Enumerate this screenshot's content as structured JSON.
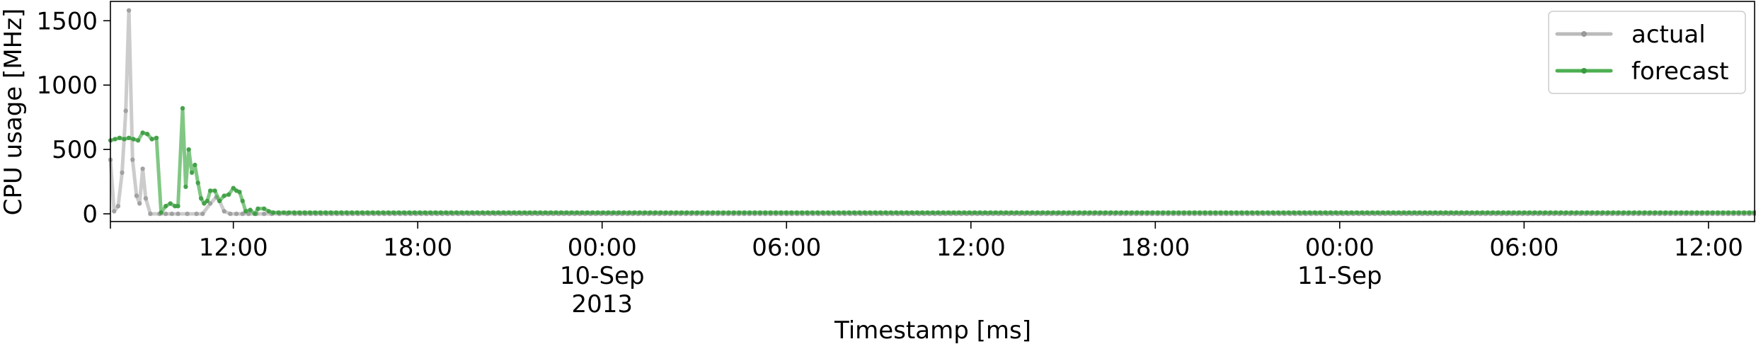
{
  "chart_data": {
    "type": "line",
    "title": "",
    "xlabel": "Timestamp [ms]",
    "ylabel": "CPU usage [MHz]",
    "x_unit": "hours since 2013-09-09 00:00",
    "xlim": [
      8.0,
      61.5
    ],
    "ylim": [
      -60,
      1650
    ],
    "y_ticks": [
      0,
      500,
      1000,
      1500
    ],
    "y_tick_labels": [
      "0",
      "500",
      "1000",
      "1500"
    ],
    "x_ticks": [
      12,
      18,
      24,
      30,
      36,
      42,
      48,
      54,
      60
    ],
    "x_tick_labels": [
      [
        "12:00"
      ],
      [
        "18:00"
      ],
      [
        "00:00",
        "10-Sep",
        "2013"
      ],
      [
        "06:00"
      ],
      [
        "12:00"
      ],
      [
        "18:00"
      ],
      [
        "00:00",
        "11-Sep"
      ],
      [
        "06:00"
      ],
      [
        "12:00"
      ]
    ],
    "grid": false,
    "legend_position": "top-right",
    "series": [
      {
        "name": "actual",
        "color": "#bbbbbb",
        "points": [
          [
            8.0,
            420
          ],
          [
            8.12,
            20
          ],
          [
            8.25,
            60
          ],
          [
            8.38,
            320
          ],
          [
            8.5,
            800
          ],
          [
            8.6,
            1580
          ],
          [
            8.72,
            420
          ],
          [
            8.85,
            140
          ],
          [
            8.95,
            80
          ],
          [
            9.05,
            350
          ],
          [
            9.15,
            120
          ],
          [
            9.3,
            0
          ],
          [
            9.6,
            0
          ],
          [
            10.0,
            0
          ],
          [
            10.2,
            0
          ],
          [
            10.5,
            0
          ],
          [
            10.8,
            0
          ],
          [
            11.0,
            0
          ],
          [
            11.25,
            80
          ],
          [
            11.45,
            130
          ],
          [
            11.55,
            100
          ],
          [
            11.7,
            20
          ],
          [
            11.9,
            0
          ],
          [
            12.5,
            0
          ],
          [
            13.0,
            0
          ],
          [
            13.5,
            0
          ],
          [
            14.0,
            0
          ],
          [
            20.0,
            0
          ],
          [
            30.0,
            0
          ],
          [
            40.0,
            0
          ],
          [
            50.0,
            0
          ],
          [
            61.5,
            0
          ]
        ]
      },
      {
        "name": "forecast",
        "color": "#4caf50",
        "points": [
          [
            8.0,
            570
          ],
          [
            8.15,
            580
          ],
          [
            8.3,
            590
          ],
          [
            8.45,
            580
          ],
          [
            8.6,
            590
          ],
          [
            8.75,
            580
          ],
          [
            8.9,
            570
          ],
          [
            9.05,
            630
          ],
          [
            9.2,
            620
          ],
          [
            9.35,
            580
          ],
          [
            9.5,
            590
          ],
          [
            9.65,
            10
          ],
          [
            9.8,
            60
          ],
          [
            9.95,
            80
          ],
          [
            10.1,
            60
          ],
          [
            10.2,
            60
          ],
          [
            10.35,
            820
          ],
          [
            10.45,
            210
          ],
          [
            10.55,
            500
          ],
          [
            10.65,
            320
          ],
          [
            10.75,
            380
          ],
          [
            10.85,
            240
          ],
          [
            10.95,
            120
          ],
          [
            11.05,
            80
          ],
          [
            11.15,
            100
          ],
          [
            11.25,
            180
          ],
          [
            11.4,
            180
          ],
          [
            11.55,
            100
          ],
          [
            11.7,
            140
          ],
          [
            11.85,
            150
          ],
          [
            12.0,
            200
          ],
          [
            12.1,
            180
          ],
          [
            12.2,
            170
          ],
          [
            12.3,
            100
          ],
          [
            12.4,
            20
          ],
          [
            12.55,
            30
          ],
          [
            12.7,
            0
          ],
          [
            12.8,
            40
          ],
          [
            13.0,
            40
          ],
          [
            13.15,
            20
          ],
          [
            13.3,
            10
          ],
          [
            61.5,
            10
          ]
        ]
      }
    ]
  }
}
